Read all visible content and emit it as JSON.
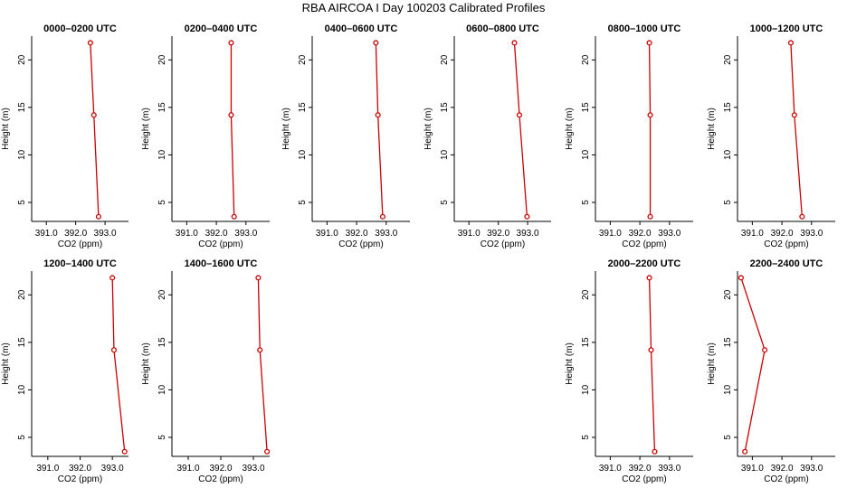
{
  "figure": {
    "title": "RBA AIRCOA I  Day 100203  Calibrated Profiles"
  },
  "chart_data": [
    {
      "type": "line",
      "title": "0000–0200 UTC",
      "xlabel": "CO2 (ppm)",
      "ylabel": "Height (m)",
      "xlim": [
        390.5,
        393.8
      ],
      "ylim": [
        3,
        22.5
      ],
      "xticks": [
        391.0,
        392.0,
        393.0
      ],
      "xtick_labels": [
        "391.0",
        "392.0",
        "393.0"
      ],
      "yticks": [
        5,
        10,
        15,
        20
      ],
      "ytick_labels": [
        "5",
        "10",
        "15",
        "20"
      ],
      "x": [
        392.5,
        392.62,
        392.78
      ],
      "y": [
        21.8,
        14.2,
        3.5
      ],
      "color": "#cc0000"
    },
    {
      "type": "line",
      "title": "0200–0400 UTC",
      "xlabel": "CO2 (ppm)",
      "ylabel": "Height (m)",
      "xlim": [
        390.5,
        393.8
      ],
      "ylim": [
        3,
        22.5
      ],
      "xticks": [
        391.0,
        392.0,
        393.0
      ],
      "xtick_labels": [
        "391.0",
        "392.0",
        "393.0"
      ],
      "yticks": [
        5,
        10,
        15,
        20
      ],
      "ytick_labels": [
        "5",
        "10",
        "15",
        "20"
      ],
      "x": [
        392.5,
        392.5,
        392.6
      ],
      "y": [
        21.8,
        14.2,
        3.5
      ],
      "color": "#cc0000"
    },
    {
      "type": "line",
      "title": "0400–0600 UTC",
      "xlabel": "CO2 (ppm)",
      "ylabel": "Height (m)",
      "xlim": [
        390.5,
        393.8
      ],
      "ylim": [
        3,
        22.5
      ],
      "xticks": [
        391.0,
        392.0,
        393.0
      ],
      "xtick_labels": [
        "391.0",
        "392.0",
        "393.0"
      ],
      "yticks": [
        5,
        10,
        15,
        20
      ],
      "ytick_labels": [
        "5",
        "10",
        "15",
        "20"
      ],
      "x": [
        392.65,
        392.72,
        392.88
      ],
      "y": [
        21.8,
        14.2,
        3.5
      ],
      "color": "#cc0000"
    },
    {
      "type": "line",
      "title": "0600–0800 UTC",
      "xlabel": "CO2 (ppm)",
      "ylabel": "Height (m)",
      "xlim": [
        390.5,
        393.8
      ],
      "ylim": [
        3,
        22.5
      ],
      "xticks": [
        391.0,
        392.0,
        393.0
      ],
      "xtick_labels": [
        "391.0",
        "392.0",
        "393.0"
      ],
      "yticks": [
        5,
        10,
        15,
        20
      ],
      "ytick_labels": [
        "5",
        "10",
        "15",
        "20"
      ],
      "x": [
        392.55,
        392.72,
        392.98
      ],
      "y": [
        21.8,
        14.2,
        3.5
      ],
      "color": "#cc0000"
    },
    {
      "type": "line",
      "title": "0800–1000 UTC",
      "xlabel": "CO2 (ppm)",
      "ylabel": "Height (m)",
      "xlim": [
        390.5,
        393.8
      ],
      "ylim": [
        3,
        22.5
      ],
      "xticks": [
        391.0,
        392.0,
        393.0
      ],
      "xtick_labels": [
        "391.0",
        "392.0",
        "393.0"
      ],
      "yticks": [
        5,
        10,
        15,
        20
      ],
      "ytick_labels": [
        "5",
        "10",
        "15",
        "20"
      ],
      "x": [
        392.32,
        392.35,
        392.35
      ],
      "y": [
        21.8,
        14.2,
        3.5
      ],
      "color": "#cc0000"
    },
    {
      "type": "line",
      "title": "1000–1200 UTC",
      "xlabel": "CO2 (ppm)",
      "ylabel": "Height (m)",
      "xlim": [
        390.5,
        393.8
      ],
      "ylim": [
        3,
        22.5
      ],
      "xticks": [
        391.0,
        392.0,
        393.0
      ],
      "xtick_labels": [
        "391.0",
        "392.0",
        "393.0"
      ],
      "yticks": [
        5,
        10,
        15,
        20
      ],
      "ytick_labels": [
        "5",
        "10",
        "15",
        "20"
      ],
      "x": [
        392.3,
        392.42,
        392.68
      ],
      "y": [
        21.8,
        14.2,
        3.5
      ],
      "color": "#cc0000"
    },
    {
      "type": "line",
      "title": "1200–1400 UTC",
      "xlabel": "CO2 (ppm)",
      "ylabel": "Height (m)",
      "xlim": [
        390.5,
        393.5
      ],
      "ylim": [
        3,
        22.5
      ],
      "xticks": [
        391.0,
        392.0,
        393.0
      ],
      "xtick_labels": [
        "391.0",
        "392.0",
        "393.0"
      ],
      "yticks": [
        5,
        10,
        15,
        20
      ],
      "ytick_labels": [
        "5",
        "10",
        "15",
        "20"
      ],
      "x": [
        393.0,
        393.05,
        393.38
      ],
      "y": [
        21.8,
        14.2,
        3.5
      ],
      "color": "#cc0000"
    },
    {
      "type": "line",
      "title": "1400–1600 UTC",
      "xlabel": "CO2 (ppm)",
      "ylabel": "Height (m)",
      "xlim": [
        390.5,
        393.5
      ],
      "ylim": [
        3,
        22.5
      ],
      "xticks": [
        391.0,
        392.0,
        393.0
      ],
      "xtick_labels": [
        "391.0",
        "392.0",
        "393.0"
      ],
      "yticks": [
        5,
        10,
        15,
        20
      ],
      "ytick_labels": [
        "5",
        "10",
        "15",
        "20"
      ],
      "x": [
        393.15,
        393.2,
        393.42
      ],
      "y": [
        21.8,
        14.2,
        3.5
      ],
      "color": "#cc0000"
    },
    {
      "type": "line",
      "title": "2000–2200 UTC",
      "xlabel": "CO2 (ppm)",
      "ylabel": "Height (m)",
      "xlim": [
        390.5,
        393.8
      ],
      "ylim": [
        3,
        22.5
      ],
      "xticks": [
        391.0,
        392.0,
        393.0
      ],
      "xtick_labels": [
        "391.0",
        "392.0",
        "393.0"
      ],
      "yticks": [
        5,
        10,
        15,
        20
      ],
      "ytick_labels": [
        "5",
        "10",
        "15",
        "20"
      ],
      "x": [
        392.32,
        392.38,
        392.5
      ],
      "y": [
        21.8,
        14.2,
        3.5
      ],
      "color": "#cc0000"
    },
    {
      "type": "line",
      "title": "2200–2400 UTC",
      "xlabel": "CO2 (ppm)",
      "ylabel": "Height (m)",
      "xlim": [
        390.5,
        393.8
      ],
      "ylim": [
        3,
        22.5
      ],
      "xticks": [
        391.0,
        392.0,
        393.0
      ],
      "xtick_labels": [
        "391.0",
        "392.0",
        "393.0"
      ],
      "yticks": [
        5,
        10,
        15,
        20
      ],
      "ytick_labels": [
        "5",
        "10",
        "15",
        "20"
      ],
      "x": [
        390.62,
        391.42,
        390.75
      ],
      "y": [
        21.8,
        14.2,
        3.5
      ],
      "color": "#cc0000"
    }
  ]
}
